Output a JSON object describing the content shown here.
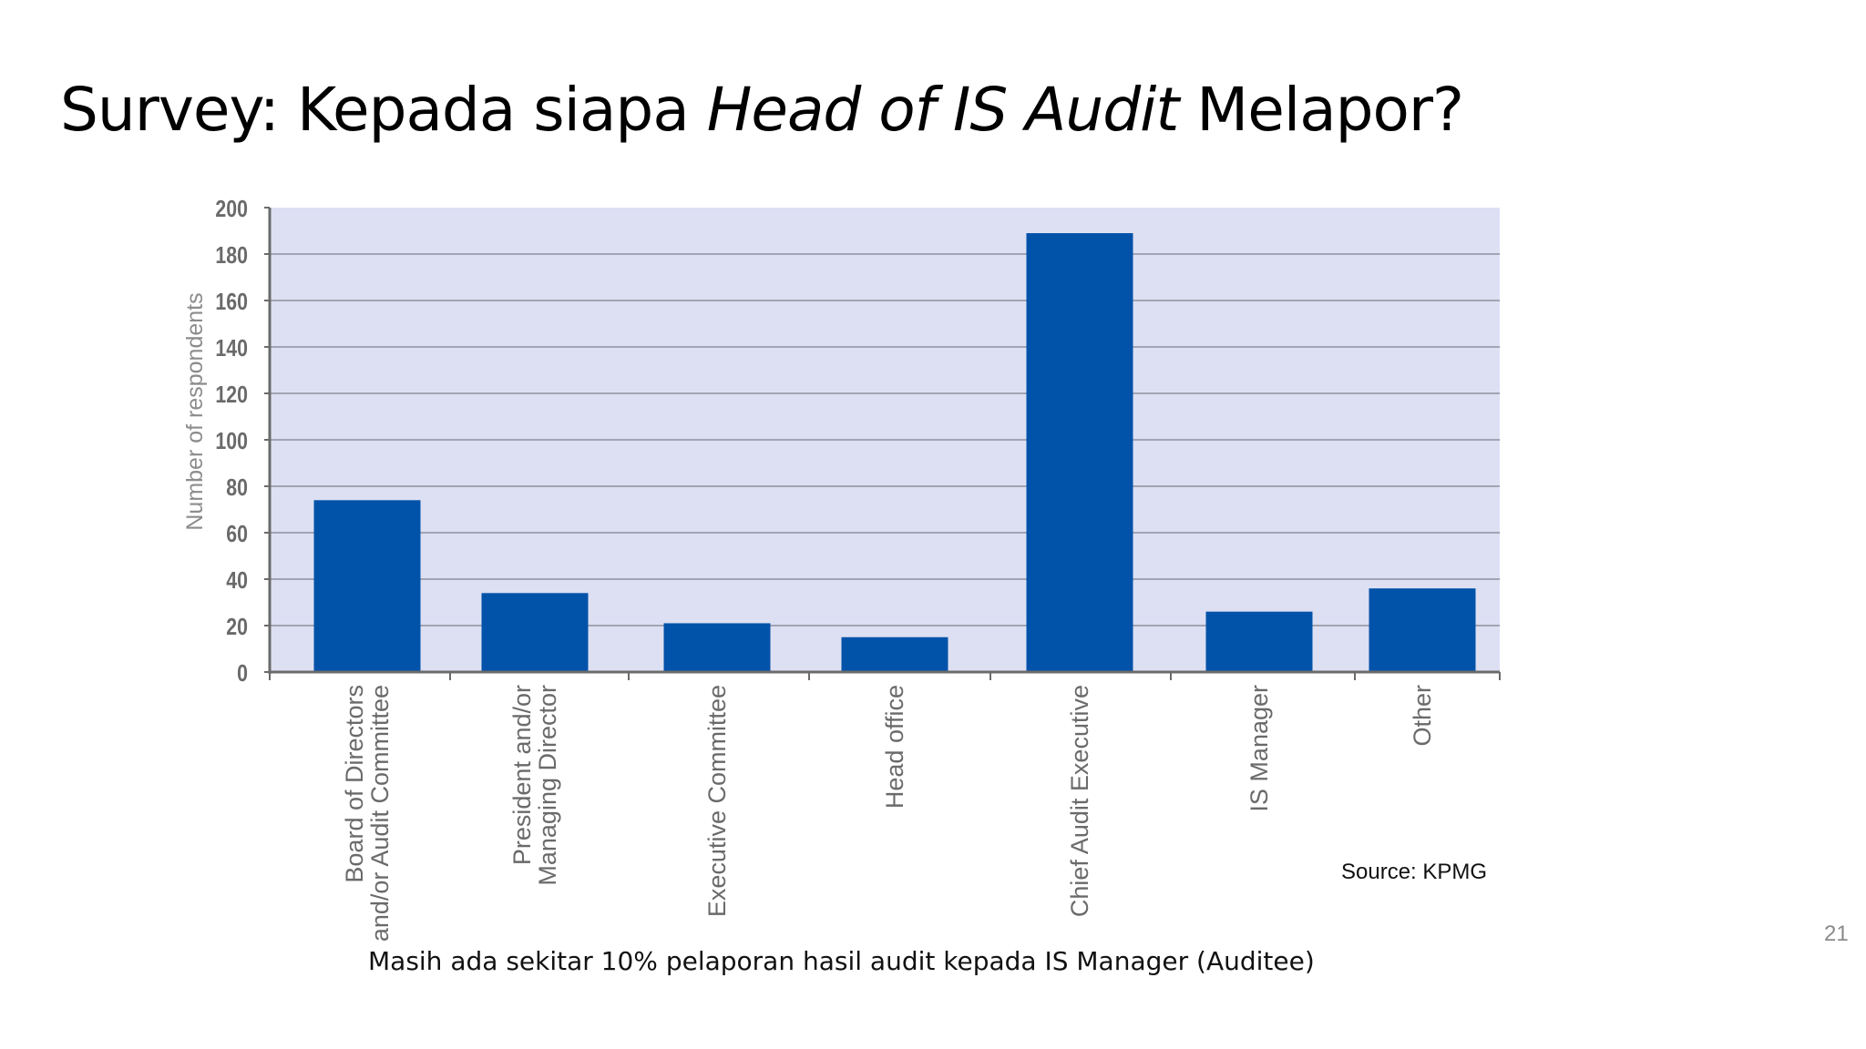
{
  "slide": {
    "title_part1": "Survey: Kepada siapa ",
    "title_italic": "Head of IS Audit",
    "title_part2": " Melapor?",
    "source": "Source: KPMG",
    "caption": "Masih ada sekitar 10% pelaporan hasil audit kepada IS Manager (Auditee)",
    "page_number": "21"
  },
  "chart_data": {
    "type": "bar",
    "title": "",
    "xlabel": "",
    "ylabel": "Number of respondents",
    "ylim": [
      0,
      200
    ],
    "yticks": [
      0,
      20,
      40,
      60,
      80,
      100,
      120,
      140,
      160,
      180,
      200
    ],
    "grid": true,
    "categories": [
      [
        "Board of Directors",
        "and/or Audit Committee"
      ],
      [
        "President and/or",
        "Managing Director"
      ],
      [
        "Executive Committee"
      ],
      [
        "Head office"
      ],
      [
        "Chief Audit Executive"
      ],
      [
        "IS Manager"
      ],
      [
        "Other"
      ]
    ],
    "values": [
      74,
      34,
      21,
      15,
      189,
      26,
      36
    ],
    "colors": {
      "bar": "#0152a9",
      "plot_background": "#dde0f3",
      "gridline": "#8d8f9c",
      "axis": "#6b6b6b",
      "tick_label": "#6a6a6a",
      "ylabel": "#8c8c8c"
    }
  }
}
